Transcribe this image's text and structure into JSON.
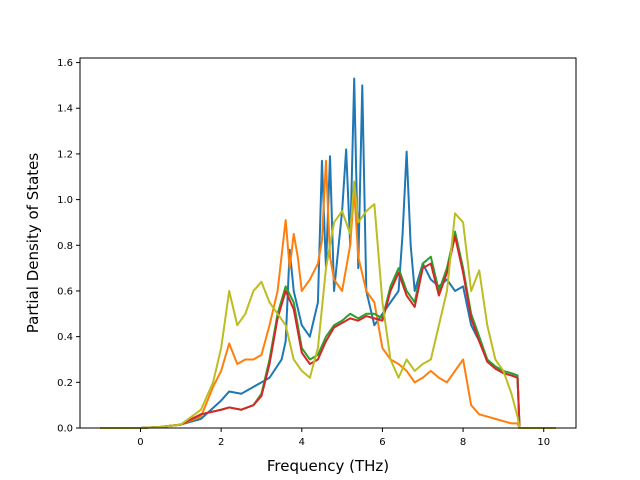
{
  "chart_data": {
    "type": "line",
    "title": "",
    "xlabel": "Frequency (THz)",
    "ylabel": "Partial Density of States",
    "xlim": [
      -1.5,
      10.8
    ],
    "ylim": [
      0,
      1.62
    ],
    "xticks": [
      0,
      2,
      4,
      6,
      8,
      10
    ],
    "yticks": [
      0.0,
      0.2,
      0.4,
      0.6,
      0.8,
      1.0,
      1.2,
      1.4,
      1.6
    ],
    "xtick_labels": [
      "0",
      "2",
      "4",
      "6",
      "8",
      "10"
    ],
    "ytick_labels": [
      "0.0",
      "0.2",
      "0.4",
      "0.6",
      "0.8",
      "1.0",
      "1.2",
      "1.4",
      "1.6"
    ],
    "grid": false,
    "legend": "none",
    "series": [
      {
        "color": "#1f77b4",
        "x": [
          -1.0,
          0.0,
          0.5,
          1.0,
          1.5,
          2.0,
          2.2,
          2.5,
          3.0,
          3.2,
          3.5,
          3.6,
          3.7,
          3.8,
          4.0,
          4.2,
          4.4,
          4.5,
          4.6,
          4.7,
          4.8,
          5.0,
          5.1,
          5.2,
          5.3,
          5.4,
          5.5,
          5.6,
          5.8,
          6.0,
          6.2,
          6.4,
          6.5,
          6.6,
          6.7,
          6.8,
          7.0,
          7.2,
          7.4,
          7.6,
          7.8,
          8.0,
          8.2,
          8.4,
          8.6,
          8.8,
          9.0,
          9.2,
          9.35,
          9.4,
          9.6,
          10.3
        ],
        "y": [
          0.0,
          0.0,
          0.005,
          0.015,
          0.04,
          0.12,
          0.16,
          0.15,
          0.2,
          0.22,
          0.3,
          0.38,
          0.78,
          0.6,
          0.45,
          0.4,
          0.55,
          1.17,
          0.7,
          1.19,
          0.6,
          0.95,
          1.22,
          0.8,
          1.53,
          0.7,
          1.5,
          0.6,
          0.45,
          0.5,
          0.55,
          0.6,
          0.85,
          1.21,
          0.8,
          0.6,
          0.72,
          0.65,
          0.62,
          0.65,
          0.6,
          0.62,
          0.45,
          0.38,
          0.3,
          0.26,
          0.24,
          0.23,
          0.22,
          0.0,
          0.0,
          0.0
        ]
      },
      {
        "color": "#ff7f0e",
        "x": [
          -1.0,
          0.0,
          0.5,
          1.0,
          1.5,
          1.8,
          2.0,
          2.2,
          2.4,
          2.6,
          2.8,
          3.0,
          3.2,
          3.4,
          3.6,
          3.7,
          3.8,
          3.9,
          4.0,
          4.2,
          4.4,
          4.5,
          4.6,
          4.7,
          4.8,
          5.0,
          5.2,
          5.3,
          5.4,
          5.6,
          5.8,
          6.0,
          6.2,
          6.4,
          6.6,
          6.8,
          7.0,
          7.2,
          7.4,
          7.6,
          7.8,
          8.0,
          8.2,
          8.4,
          8.6,
          8.8,
          9.0,
          9.2,
          9.35,
          9.4,
          9.6,
          10.3
        ],
        "y": [
          0.0,
          0.0,
          0.005,
          0.015,
          0.05,
          0.18,
          0.25,
          0.37,
          0.28,
          0.3,
          0.3,
          0.32,
          0.45,
          0.6,
          0.91,
          0.7,
          0.85,
          0.75,
          0.6,
          0.65,
          0.72,
          0.82,
          1.17,
          0.75,
          0.65,
          0.6,
          0.8,
          1.04,
          0.75,
          0.6,
          0.55,
          0.35,
          0.3,
          0.28,
          0.25,
          0.2,
          0.22,
          0.25,
          0.22,
          0.2,
          0.25,
          0.3,
          0.1,
          0.06,
          0.05,
          0.04,
          0.03,
          0.02,
          0.02,
          0.0,
          0.0,
          0.0
        ]
      },
      {
        "color": "#2ca02c",
        "x": [
          -1.0,
          0.0,
          0.5,
          1.0,
          1.5,
          2.0,
          2.2,
          2.5,
          2.8,
          3.0,
          3.2,
          3.4,
          3.6,
          3.8,
          4.0,
          4.2,
          4.4,
          4.6,
          4.8,
          5.0,
          5.2,
          5.4,
          5.6,
          5.8,
          6.0,
          6.2,
          6.4,
          6.6,
          6.8,
          7.0,
          7.2,
          7.4,
          7.6,
          7.8,
          8.0,
          8.2,
          8.4,
          8.6,
          8.8,
          9.0,
          9.2,
          9.35,
          9.4,
          9.6,
          10.3
        ],
        "y": [
          0.0,
          0.0,
          0.005,
          0.015,
          0.06,
          0.08,
          0.09,
          0.08,
          0.1,
          0.15,
          0.3,
          0.5,
          0.62,
          0.55,
          0.35,
          0.3,
          0.32,
          0.4,
          0.45,
          0.47,
          0.5,
          0.48,
          0.5,
          0.5,
          0.48,
          0.62,
          0.7,
          0.6,
          0.55,
          0.72,
          0.75,
          0.6,
          0.7,
          0.86,
          0.7,
          0.5,
          0.4,
          0.3,
          0.27,
          0.25,
          0.24,
          0.23,
          0.0,
          0.0,
          0.0
        ]
      },
      {
        "color": "#d62728",
        "x": [
          -1.0,
          0.0,
          0.5,
          1.0,
          1.5,
          2.0,
          2.2,
          2.5,
          2.8,
          3.0,
          3.2,
          3.4,
          3.6,
          3.8,
          4.0,
          4.2,
          4.4,
          4.6,
          4.8,
          5.0,
          5.2,
          5.4,
          5.6,
          5.8,
          6.0,
          6.2,
          6.4,
          6.6,
          6.8,
          7.0,
          7.2,
          7.4,
          7.6,
          7.8,
          8.0,
          8.2,
          8.4,
          8.6,
          8.8,
          9.0,
          9.2,
          9.35,
          9.4,
          9.6,
          10.3
        ],
        "y": [
          0.0,
          0.0,
          0.005,
          0.015,
          0.06,
          0.08,
          0.09,
          0.08,
          0.1,
          0.14,
          0.28,
          0.48,
          0.6,
          0.52,
          0.33,
          0.28,
          0.3,
          0.38,
          0.44,
          0.46,
          0.48,
          0.47,
          0.49,
          0.48,
          0.47,
          0.6,
          0.68,
          0.58,
          0.53,
          0.7,
          0.72,
          0.58,
          0.68,
          0.84,
          0.68,
          0.48,
          0.38,
          0.29,
          0.26,
          0.24,
          0.23,
          0.22,
          0.0,
          0.0,
          0.0
        ]
      },
      {
        "color": "#bcbd22",
        "x": [
          -1.0,
          0.0,
          0.5,
          1.0,
          1.5,
          1.8,
          2.0,
          2.2,
          2.4,
          2.6,
          2.8,
          3.0,
          3.2,
          3.4,
          3.6,
          3.8,
          4.0,
          4.2,
          4.4,
          4.6,
          4.8,
          5.0,
          5.2,
          5.3,
          5.4,
          5.6,
          5.8,
          6.0,
          6.2,
          6.4,
          6.6,
          6.8,
          7.0,
          7.2,
          7.4,
          7.6,
          7.8,
          8.0,
          8.2,
          8.4,
          8.6,
          8.8,
          9.0,
          9.2,
          9.35,
          9.4,
          9.6,
          10.3
        ],
        "y": [
          0.0,
          0.0,
          0.005,
          0.015,
          0.08,
          0.2,
          0.35,
          0.6,
          0.45,
          0.5,
          0.6,
          0.64,
          0.55,
          0.5,
          0.45,
          0.3,
          0.25,
          0.22,
          0.35,
          0.7,
          0.9,
          0.95,
          0.85,
          1.08,
          0.9,
          0.95,
          0.98,
          0.55,
          0.3,
          0.22,
          0.3,
          0.25,
          0.28,
          0.3,
          0.45,
          0.6,
          0.94,
          0.9,
          0.6,
          0.69,
          0.45,
          0.3,
          0.25,
          0.15,
          0.05,
          0.0,
          0.0,
          0.0
        ]
      }
    ]
  }
}
